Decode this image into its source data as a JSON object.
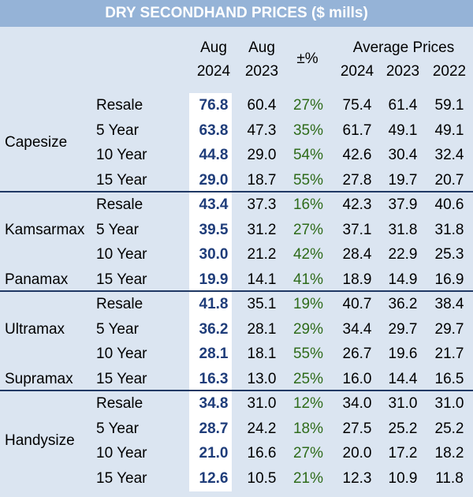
{
  "title": "DRY SECONDHAND PRICES ($ mills)",
  "headers": {
    "aug2024": [
      "Aug",
      "2024"
    ],
    "aug2023": [
      "Aug",
      "2023"
    ],
    "pm": "±%",
    "avg": "Average Prices",
    "y2024": "2024",
    "y2023": "2023",
    "y2022": "2022"
  },
  "groups": [
    {
      "name": "Capesize",
      "rows": [
        {
          "type": "Resale",
          "aug24": "76.8",
          "aug23": "60.4",
          "pct": "27%",
          "a24": "75.4",
          "a23": "61.4",
          "a22": "59.1"
        },
        {
          "type": "5 Year",
          "aug24": "63.8",
          "aug23": "47.3",
          "pct": "35%",
          "a24": "61.7",
          "a23": "49.1",
          "a22": "49.1"
        },
        {
          "type": "10 Year",
          "aug24": "44.8",
          "aug23": "29.0",
          "pct": "54%",
          "a24": "42.6",
          "a23": "30.4",
          "a22": "32.4"
        },
        {
          "type": "15 Year",
          "aug24": "29.0",
          "aug23": "18.7",
          "pct": "55%",
          "a24": "27.8",
          "a23": "19.7",
          "a22": "20.7"
        }
      ]
    },
    {
      "name": "Kamsarmax",
      "name2": "Panamax",
      "rows": [
        {
          "type": "Resale",
          "aug24": "43.4",
          "aug23": "37.3",
          "pct": "16%",
          "a24": "42.3",
          "a23": "37.9",
          "a22": "40.6"
        },
        {
          "type": "5 Year",
          "aug24": "39.5",
          "aug23": "31.2",
          "pct": "27%",
          "a24": "37.1",
          "a23": "31.8",
          "a22": "31.8"
        },
        {
          "type": "10 Year",
          "aug24": "30.0",
          "aug23": "21.2",
          "pct": "42%",
          "a24": "28.4",
          "a23": "22.9",
          "a22": "25.3"
        },
        {
          "type": "15 Year",
          "aug24": "19.9",
          "aug23": "14.1",
          "pct": "41%",
          "a24": "18.9",
          "a23": "14.9",
          "a22": "16.9"
        }
      ]
    },
    {
      "name": "Ultramax",
      "name2": "Supramax",
      "rows": [
        {
          "type": "Resale",
          "aug24": "41.8",
          "aug23": "35.1",
          "pct": "19%",
          "a24": "40.7",
          "a23": "36.2",
          "a22": "38.4"
        },
        {
          "type": "5 Year",
          "aug24": "36.2",
          "aug23": "28.1",
          "pct": "29%",
          "a24": "34.4",
          "a23": "29.7",
          "a22": "29.7"
        },
        {
          "type": "10 Year",
          "aug24": "28.1",
          "aug23": "18.1",
          "pct": "55%",
          "a24": "26.7",
          "a23": "19.6",
          "a22": "21.7"
        },
        {
          "type": "15 Year",
          "aug24": "16.3",
          "aug23": "13.0",
          "pct": "25%",
          "a24": "16.0",
          "a23": "14.4",
          "a22": "16.5"
        }
      ]
    },
    {
      "name": "Handysize",
      "rows": [
        {
          "type": "Resale",
          "aug24": "34.8",
          "aug23": "31.0",
          "pct": "12%",
          "a24": "34.0",
          "a23": "31.0",
          "a22": "31.0"
        },
        {
          "type": "5 Year",
          "aug24": "28.7",
          "aug23": "24.2",
          "pct": "18%",
          "a24": "27.5",
          "a23": "25.2",
          "a22": "25.2"
        },
        {
          "type": "10 Year",
          "aug24": "21.0",
          "aug23": "16.6",
          "pct": "27%",
          "a24": "20.0",
          "a23": "17.2",
          "a22": "18.2"
        },
        {
          "type": "15 Year",
          "aug24": "12.6",
          "aug23": "10.5",
          "pct": "21%",
          "a24": "12.3",
          "a23": "10.9",
          "a22": "11.8"
        }
      ]
    }
  ]
}
